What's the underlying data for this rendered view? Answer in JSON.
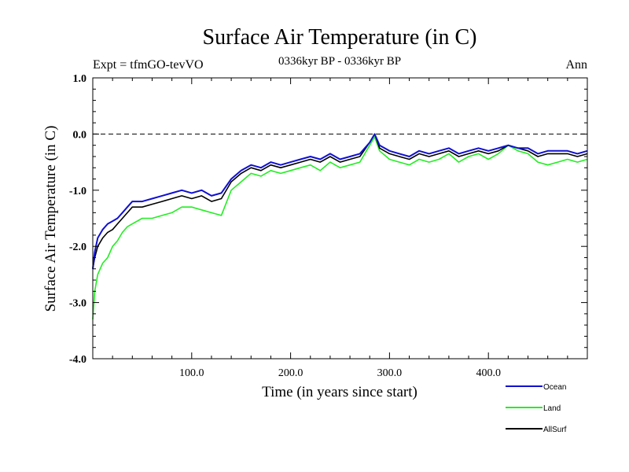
{
  "chart_data": {
    "type": "line",
    "title": "Surface Air Temperature (in C)",
    "subtitle": "0336kyr BP - 0336kyr BP",
    "expt_label": "Expt = tfmGO-tevVO",
    "season_label": "Ann",
    "xlabel": "Time (in years since start)",
    "ylabel": "Surface Air Temperature (in C)",
    "xlim": [
      0,
      500
    ],
    "ylim": [
      -4.0,
      1.0
    ],
    "x_ticks": [
      100,
      200,
      300,
      400
    ],
    "x_tick_labels": [
      "100.0",
      "200.0",
      "300.0",
      "400.0"
    ],
    "y_ticks": [
      -4,
      -3,
      -2,
      -1,
      0,
      1
    ],
    "y_tick_labels": [
      "-4.0",
      "-3.0",
      "-2.0",
      "-1.0",
      "0.0",
      "1.0"
    ],
    "reference_line_y": 0.0,
    "grid": false,
    "legend_position": "bottom-right",
    "x": [
      0,
      2,
      5,
      10,
      15,
      20,
      25,
      30,
      35,
      40,
      50,
      60,
      70,
      80,
      90,
      100,
      110,
      120,
      130,
      140,
      150,
      160,
      170,
      180,
      190,
      200,
      210,
      220,
      230,
      240,
      250,
      260,
      270,
      280,
      285,
      290,
      300,
      310,
      320,
      330,
      340,
      350,
      360,
      370,
      380,
      390,
      400,
      410,
      420,
      430,
      440,
      450,
      460,
      470,
      480,
      490,
      500
    ],
    "series": [
      {
        "name": "Ocean",
        "color": "#1010d0",
        "values": [
          -2.4,
          -2.1,
          -1.85,
          -1.7,
          -1.6,
          -1.55,
          -1.5,
          -1.4,
          -1.3,
          -1.2,
          -1.2,
          -1.15,
          -1.1,
          -1.05,
          -1.0,
          -1.05,
          -1.0,
          -1.1,
          -1.05,
          -0.8,
          -0.65,
          -0.55,
          -0.6,
          -0.5,
          -0.55,
          -0.5,
          -0.45,
          -0.4,
          -0.45,
          -0.35,
          -0.45,
          -0.4,
          -0.35,
          -0.15,
          0.0,
          -0.2,
          -0.3,
          -0.35,
          -0.4,
          -0.3,
          -0.35,
          -0.3,
          -0.25,
          -0.35,
          -0.3,
          -0.25,
          -0.3,
          -0.25,
          -0.2,
          -0.25,
          -0.25,
          -0.35,
          -0.3,
          -0.3,
          -0.3,
          -0.35,
          -0.3
        ]
      },
      {
        "name": "Land",
        "color": "#22ee22",
        "values": [
          -3.3,
          -2.8,
          -2.5,
          -2.3,
          -2.2,
          -2.0,
          -1.9,
          -1.75,
          -1.65,
          -1.6,
          -1.5,
          -1.5,
          -1.45,
          -1.4,
          -1.3,
          -1.3,
          -1.35,
          -1.4,
          -1.45,
          -1.0,
          -0.85,
          -0.7,
          -0.75,
          -0.65,
          -0.7,
          -0.65,
          -0.6,
          -0.55,
          -0.65,
          -0.5,
          -0.6,
          -0.55,
          -0.5,
          -0.2,
          -0.05,
          -0.3,
          -0.45,
          -0.5,
          -0.55,
          -0.45,
          -0.5,
          -0.45,
          -0.35,
          -0.5,
          -0.4,
          -0.35,
          -0.45,
          -0.35,
          -0.2,
          -0.3,
          -0.35,
          -0.5,
          -0.55,
          -0.5,
          -0.45,
          -0.5,
          -0.45
        ]
      },
      {
        "name": "AllSurf",
        "color": "#000000",
        "values": [
          -2.4,
          -2.2,
          -2.0,
          -1.85,
          -1.75,
          -1.7,
          -1.6,
          -1.5,
          -1.4,
          -1.3,
          -1.3,
          -1.25,
          -1.2,
          -1.15,
          -1.1,
          -1.15,
          -1.1,
          -1.2,
          -1.15,
          -0.85,
          -0.7,
          -0.6,
          -0.65,
          -0.55,
          -0.6,
          -0.55,
          -0.5,
          -0.45,
          -0.5,
          -0.4,
          -0.5,
          -0.45,
          -0.4,
          -0.15,
          0.0,
          -0.25,
          -0.35,
          -0.4,
          -0.45,
          -0.35,
          -0.4,
          -0.35,
          -0.3,
          -0.4,
          -0.35,
          -0.3,
          -0.35,
          -0.3,
          -0.2,
          -0.25,
          -0.3,
          -0.4,
          -0.35,
          -0.35,
          -0.35,
          -0.4,
          -0.35
        ]
      }
    ]
  }
}
